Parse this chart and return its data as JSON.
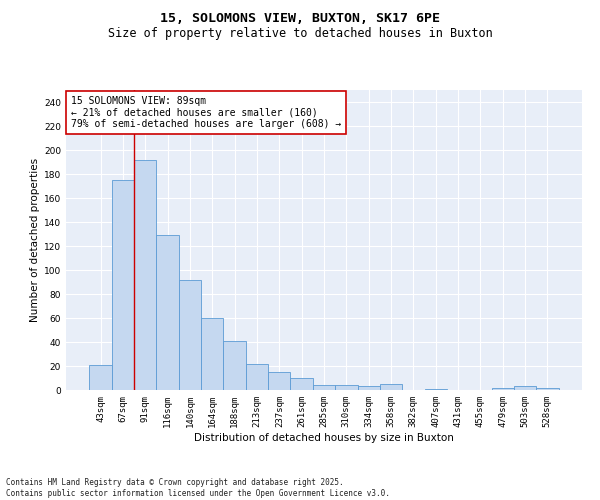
{
  "title": "15, SOLOMONS VIEW, BUXTON, SK17 6PE",
  "subtitle": "Size of property relative to detached houses in Buxton",
  "xlabel": "Distribution of detached houses by size in Buxton",
  "ylabel": "Number of detached properties",
  "categories": [
    "43sqm",
    "67sqm",
    "91sqm",
    "116sqm",
    "140sqm",
    "164sqm",
    "188sqm",
    "213sqm",
    "237sqm",
    "261sqm",
    "285sqm",
    "310sqm",
    "334sqm",
    "358sqm",
    "382sqm",
    "407sqm",
    "431sqm",
    "455sqm",
    "479sqm",
    "503sqm",
    "528sqm"
  ],
  "values": [
    21,
    175,
    192,
    129,
    92,
    60,
    41,
    22,
    15,
    10,
    4,
    4,
    3,
    5,
    0,
    1,
    0,
    0,
    2,
    3,
    2
  ],
  "bar_color": "#c5d8f0",
  "bar_edge_color": "#5b9bd5",
  "background_color": "#e8eef8",
  "grid_color": "#ffffff",
  "annotation_text": "15 SOLOMONS VIEW: 89sqm\n← 21% of detached houses are smaller (160)\n79% of semi-detached houses are larger (608) →",
  "vline_color": "#cc0000",
  "ylim": [
    0,
    250
  ],
  "yticks": [
    0,
    20,
    40,
    60,
    80,
    100,
    120,
    140,
    160,
    180,
    200,
    220,
    240
  ],
  "footer": "Contains HM Land Registry data © Crown copyright and database right 2025.\nContains public sector information licensed under the Open Government Licence v3.0.",
  "title_fontsize": 9.5,
  "subtitle_fontsize": 8.5,
  "xlabel_fontsize": 7.5,
  "ylabel_fontsize": 7.5,
  "tick_fontsize": 6.5,
  "annotation_fontsize": 7,
  "footer_fontsize": 5.5
}
